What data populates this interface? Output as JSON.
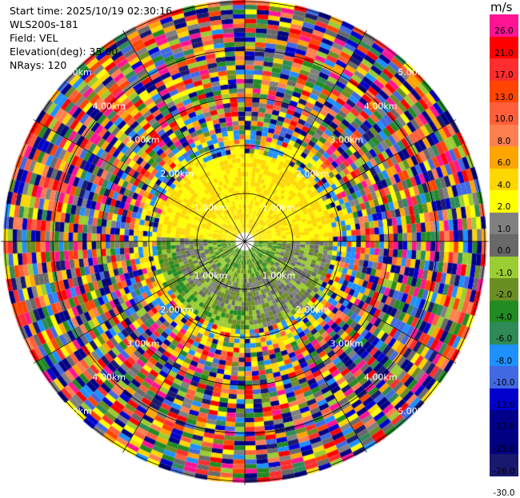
{
  "info": {
    "start_time": "Start time: 2025/10/19 02:30:16",
    "station": "WLS200s-181",
    "field": "Field: VEL",
    "elevation": "Elevation(deg): 35.00",
    "nrays": "NRays: 120"
  },
  "colorbar": {
    "unit": "m/s",
    "ticks": [
      "26.0",
      "21.0",
      "17.0",
      "13.0",
      "10.0",
      "8.0",
      "6.0",
      "4.0",
      "2.0",
      "1.0",
      "0.0",
      "-1.0",
      "-2.0",
      "-4.0",
      "-6.0",
      "-8.0",
      "-10.0",
      "-13.0",
      "-17.0",
      "-21.0",
      "-26.0",
      "-30.0"
    ],
    "colors": [
      "#ff1493",
      "#ff0000",
      "#ff2d2d",
      "#ff4500",
      "#ff5f3a",
      "#ff7f50",
      "#ffa500",
      "#ffd700",
      "#ffff00",
      "#808080",
      "#696969",
      "#9acd32",
      "#6b8e23",
      "#228b22",
      "#2e8b57",
      "#1e90ff",
      "#4169e1",
      "#0000cd",
      "#00008b",
      "#000080",
      "#191970"
    ]
  },
  "chart_data": {
    "type": "ppi",
    "field": "VEL",
    "unit": "m/s",
    "range_rings_km": [
      1.0,
      2.0,
      3.0,
      4.0,
      5.0
    ],
    "ring_labels": [
      "1.00km",
      "2.00km",
      "3.00km",
      "4.00km",
      "5.00km"
    ],
    "nrays": 120,
    "elevation_deg": 35.0,
    "value_range": [
      -30.0,
      26.0
    ],
    "inner_region": "coherent velocities within ~2.5 km: positive (yellow) to north, near zero (gray/olive) to south",
    "outer_region": "noisy velocities beyond ~2.5 km spanning full color range"
  }
}
